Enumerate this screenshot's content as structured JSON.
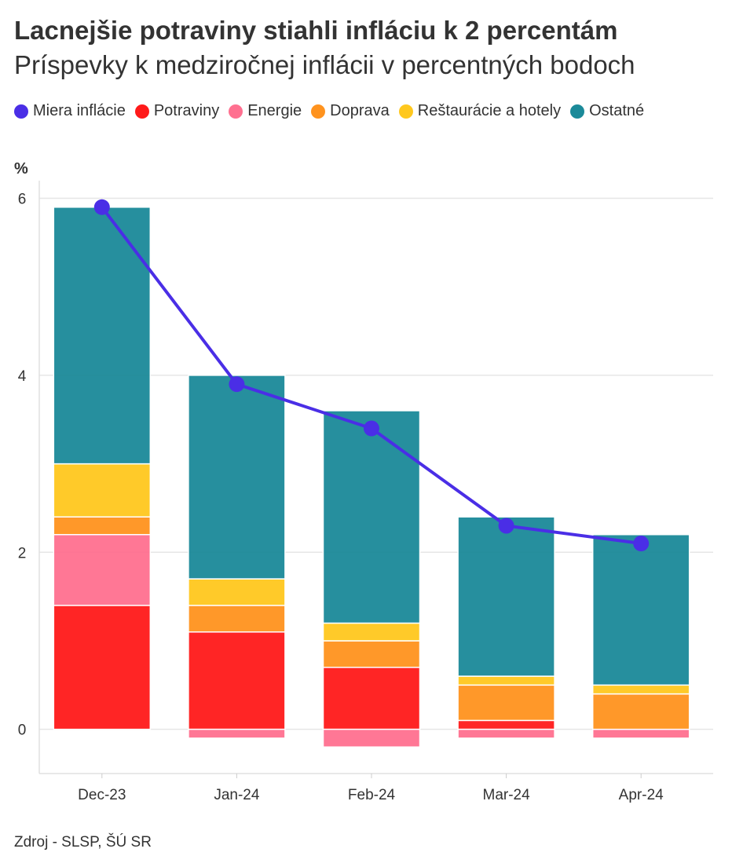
{
  "chart_data": {
    "type": "bar",
    "stacked": true,
    "title": "Lacnejšie potraviny stiahli infláciu k 2 percentám",
    "subtitle": "Príspevky k medziročnej inflácii v percentných bodoch",
    "ylabel": "%",
    "ylim": [
      -0.5,
      6.2
    ],
    "yticks": [
      0,
      2,
      4,
      6
    ],
    "grid": true,
    "legend_position": "top",
    "categories": [
      "Dec-23",
      "Jan-24",
      "Feb-24",
      "Mar-24",
      "Apr-24"
    ],
    "series": [
      {
        "name": "Potraviny",
        "color": "#ff1a1a",
        "values": [
          1.4,
          1.1,
          0.7,
          0.1,
          0.0
        ]
      },
      {
        "name": "Energie",
        "color": "#ff7090",
        "values": [
          0.8,
          -0.1,
          -0.2,
          -0.1,
          -0.1
        ]
      },
      {
        "name": "Doprava",
        "color": "#ff931e",
        "values": [
          0.2,
          0.3,
          0.3,
          0.4,
          0.4
        ]
      },
      {
        "name": "Reštaurácie a hotely",
        "color": "#ffc81e",
        "values": [
          0.6,
          0.3,
          0.2,
          0.1,
          0.1
        ]
      },
      {
        "name": "Ostatné",
        "color": "#1b8a99",
        "values": [
          2.9,
          2.3,
          2.4,
          1.8,
          1.7
        ]
      }
    ],
    "line": {
      "name": "Miera inflácie",
      "color": "#4a2ee6",
      "values": [
        5.9,
        3.9,
        3.4,
        2.3,
        2.1
      ]
    },
    "legend_order": [
      "Miera inflácie",
      "Potraviny",
      "Energie",
      "Doprava",
      "Reštaurácie a hotely",
      "Ostatné"
    ],
    "source": "Zdroj - SLSP, ŠÚ SR"
  }
}
